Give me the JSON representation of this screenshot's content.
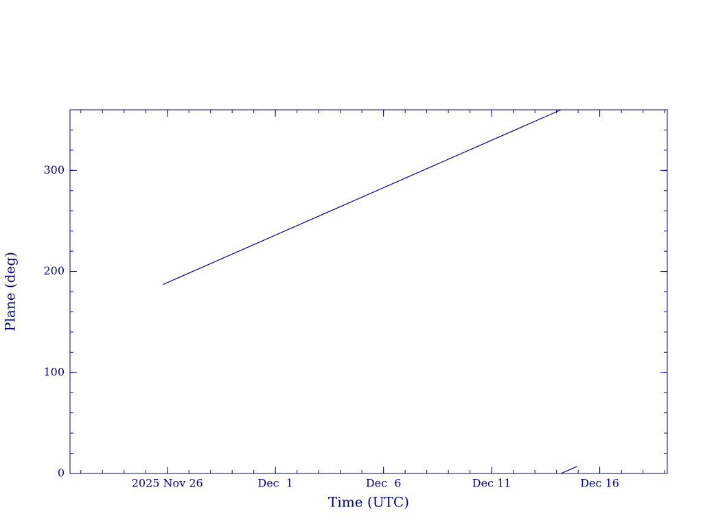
{
  "chart_data": {
    "type": "line",
    "x_label": "Time (UTC)",
    "y_label": "Plane (deg)",
    "color": "#000080",
    "x": [
      "2025-11-25T19:00",
      "2025-12-14T05:00",
      "2025-12-14T05:00",
      "2025-12-14T05:00",
      "2025-12-14T23:00"
    ],
    "values": [
      187,
      360,
      null,
      0,
      7
    ],
    "xlim": [
      "2025-11-21T12:00",
      "2025-12-19T03:00"
    ],
    "xticks": [
      {
        "value": "2025-11-26T00:00",
        "label": "2025 Nov 26"
      },
      {
        "value": "2025-12-01T00:00",
        "label": "Dec  1"
      },
      {
        "value": "2025-12-06T00:00",
        "label": "Dec  6"
      },
      {
        "value": "2025-12-11T00:00",
        "label": "Dec 11"
      },
      {
        "value": "2025-12-16T00:00",
        "label": "Dec 16"
      }
    ],
    "ylim": [
      0,
      360
    ],
    "yticks": [
      0,
      100,
      200,
      300
    ]
  }
}
